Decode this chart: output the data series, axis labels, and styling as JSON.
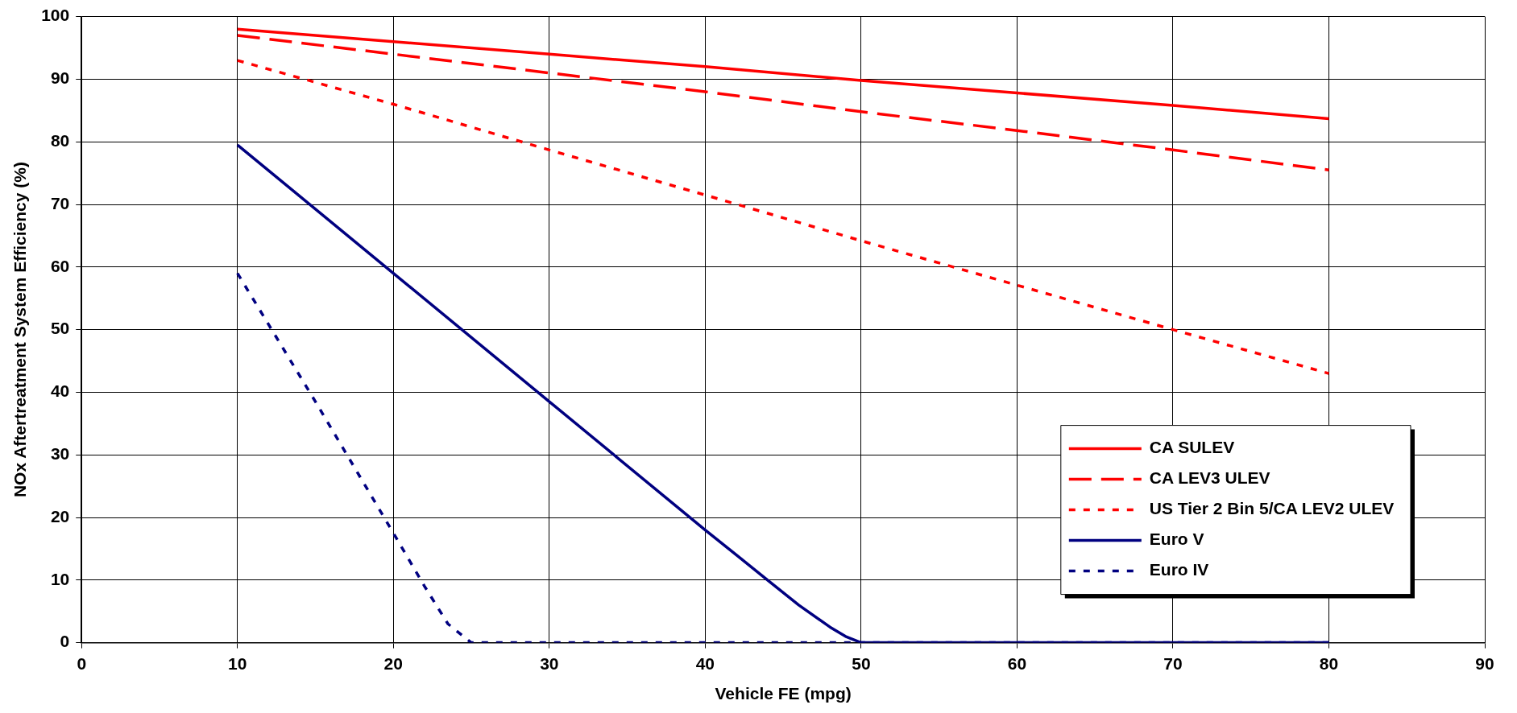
{
  "chart_data": {
    "type": "line",
    "xlabel": "Vehicle FE (mpg)",
    "ylabel": "NOx Aftertreatment System Efficiency (%)",
    "xlim": [
      0,
      90
    ],
    "xticks": [
      0,
      10,
      20,
      30,
      40,
      50,
      60,
      70,
      80,
      90
    ],
    "ylim": [
      0,
      100
    ],
    "yticks": [
      0,
      10,
      20,
      30,
      40,
      50,
      60,
      70,
      80,
      90,
      100
    ],
    "grid": true,
    "legend": "bottom right",
    "marker": "none",
    "series": [
      {
        "name": "CA SULEV",
        "color": "#ff0000",
        "line_style": "solid",
        "x": [
          10,
          20,
          30,
          40,
          50,
          60,
          70,
          80
        ],
        "values": [
          98,
          96,
          94,
          92,
          89.8,
          87.8,
          85.8,
          83.7
        ]
      },
      {
        "name": "CA LEV3 ULEV",
        "color": "#ff0000",
        "line_style": "dashed",
        "x": [
          10,
          20,
          30,
          40,
          50,
          60,
          70,
          80
        ],
        "values": [
          97,
          94,
          91,
          88,
          84.8,
          81.8,
          78.7,
          75.5
        ]
      },
      {
        "name": "US Tier 2 Bin 5/CA LEV2 ULEV",
        "color": "#ff0000",
        "line_style": "dotted",
        "x": [
          10,
          20,
          30,
          40,
          50,
          60,
          70,
          80
        ],
        "values": [
          93,
          86,
          78.7,
          71.5,
          64.2,
          57.1,
          50,
          43
        ]
      },
      {
        "name": "Euro V",
        "color": "#000080",
        "line_style": "solid",
        "x": [
          10,
          20,
          30,
          40,
          42,
          44,
          46,
          48,
          49,
          50,
          60,
          70,
          80
        ],
        "values": [
          79.5,
          59,
          38.5,
          18,
          14,
          10,
          6,
          2.5,
          1,
          0,
          0,
          0,
          0
        ]
      },
      {
        "name": "Euro IV",
        "color": "#000080",
        "line_style": "dotted",
        "x": [
          10,
          15,
          20,
          22,
          23.5,
          25,
          30,
          40,
          50,
          60,
          70,
          80
        ],
        "values": [
          59,
          38.5,
          17.5,
          9,
          3,
          0,
          0,
          0,
          0,
          0,
          0,
          0
        ]
      }
    ]
  }
}
